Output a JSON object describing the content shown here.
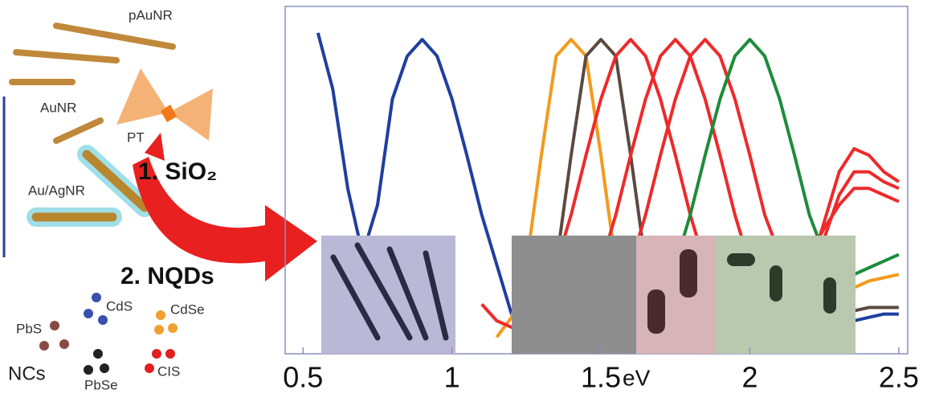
{
  "chart_data": {
    "type": "line",
    "xlabel": "eV",
    "x": [
      0.5,
      0.55,
      0.6,
      0.65,
      0.7,
      0.75,
      0.8,
      0.85,
      0.9,
      0.95,
      1.0,
      1.05,
      1.1,
      1.15,
      1.2,
      1.25,
      1.3,
      1.35,
      1.4,
      1.45,
      1.5,
      1.55,
      1.6,
      1.65,
      1.7,
      1.75,
      1.8,
      1.85,
      1.9,
      1.95,
      2.0,
      2.05,
      2.1,
      2.15,
      2.2,
      2.25,
      2.3,
      2.35,
      2.4,
      2.45,
      2.5
    ],
    "xlim": [
      0.44,
      2.53
    ],
    "xticks": [
      0.5,
      1,
      1.5,
      2,
      2.5
    ],
    "ylim": [
      0,
      1.05
    ],
    "series": [
      {
        "color": "#1f3fa0",
        "values": [
          null,
          0.97,
          0.8,
          0.5,
          0.3,
          0.45,
          0.77,
          0.9,
          0.95,
          0.9,
          0.77,
          0.6,
          0.42,
          0.27,
          0.12,
          0.06,
          0.06,
          0.06,
          0.06,
          0.06,
          0.06,
          0.06,
          0.06,
          0.06,
          0.06,
          0.06,
          0.06,
          0.06,
          0.06,
          0.06,
          0.06,
          0.07,
          0.07,
          0.08,
          0.08,
          0.09,
          0.1,
          0.1,
          0.11,
          0.12,
          0.12
        ]
      },
      {
        "color": "#f39a1e",
        "values": [
          null,
          null,
          null,
          null,
          null,
          null,
          null,
          null,
          null,
          null,
          null,
          null,
          null,
          0.05,
          0.11,
          0.27,
          0.6,
          0.9,
          0.95,
          0.9,
          0.6,
          0.27,
          0.11,
          0.06,
          0.05,
          0.05,
          0.05,
          0.05,
          0.05,
          0.05,
          0.05,
          0.06,
          0.07,
          0.09,
          0.11,
          0.14,
          0.17,
          0.2,
          0.22,
          0.23,
          0.24
        ]
      },
      {
        "color": "#5a4a42",
        "values": [
          null,
          null,
          null,
          null,
          null,
          null,
          null,
          null,
          null,
          null,
          null,
          null,
          null,
          null,
          null,
          0.05,
          0.11,
          0.27,
          0.6,
          0.9,
          0.95,
          0.9,
          0.6,
          0.27,
          0.11,
          0.06,
          0.06,
          0.06,
          0.06,
          0.06,
          0.06,
          0.07,
          0.08,
          0.09,
          0.1,
          0.11,
          0.12,
          0.13,
          0.14,
          0.14,
          0.14
        ]
      },
      {
        "color": "#ee2a2a",
        "values": [
          null,
          null,
          null,
          null,
          null,
          null,
          null,
          null,
          null,
          null,
          null,
          null,
          0.15,
          0.1,
          0.08,
          0.11,
          0.17,
          0.27,
          0.42,
          0.6,
          0.77,
          0.9,
          0.95,
          0.9,
          0.77,
          0.6,
          0.42,
          0.27,
          0.17,
          0.11,
          0.08,
          0.08,
          0.1,
          0.15,
          0.25,
          0.4,
          0.55,
          0.62,
          0.6,
          0.55,
          0.52
        ]
      },
      {
        "color": "#ee2a2a",
        "values": [
          null,
          null,
          null,
          null,
          null,
          null,
          null,
          null,
          null,
          null,
          null,
          null,
          null,
          null,
          null,
          null,
          null,
          0.08,
          0.11,
          0.17,
          0.27,
          0.42,
          0.6,
          0.77,
          0.9,
          0.95,
          0.9,
          0.77,
          0.6,
          0.42,
          0.27,
          0.17,
          0.12,
          0.15,
          0.22,
          0.35,
          0.48,
          0.55,
          0.55,
          0.52,
          0.5
        ]
      },
      {
        "color": "#ee2a2a",
        "values": [
          null,
          null,
          null,
          null,
          null,
          null,
          null,
          null,
          null,
          null,
          null,
          null,
          null,
          null,
          null,
          null,
          null,
          null,
          null,
          0.08,
          0.11,
          0.17,
          0.27,
          0.42,
          0.6,
          0.77,
          0.9,
          0.95,
          0.9,
          0.77,
          0.6,
          0.42,
          0.3,
          0.28,
          0.3,
          0.38,
          0.45,
          0.5,
          0.5,
          0.48,
          0.46
        ]
      },
      {
        "color": "#1e8c3a",
        "values": [
          null,
          null,
          null,
          null,
          null,
          null,
          null,
          null,
          null,
          null,
          null,
          null,
          null,
          null,
          null,
          null,
          null,
          null,
          null,
          null,
          null,
          null,
          0.08,
          0.11,
          0.17,
          0.27,
          0.42,
          0.6,
          0.77,
          0.9,
          0.95,
          0.9,
          0.77,
          0.6,
          0.42,
          0.3,
          0.24,
          0.24,
          0.26,
          0.28,
          0.3
        ]
      }
    ]
  },
  "diagram": {
    "pAuNR": "pAuNR",
    "AuNR": "AuNR",
    "PT": "PT",
    "AuAgNR": "Au/AgNR",
    "step1": "1. SiO₂",
    "step2": "2. NQDs",
    "PbS": "PbS",
    "CdS": "CdS",
    "CdSe": "CdSe",
    "PbSe": "PbSe",
    "NCs": "NCs",
    "CIS": "CIS"
  }
}
